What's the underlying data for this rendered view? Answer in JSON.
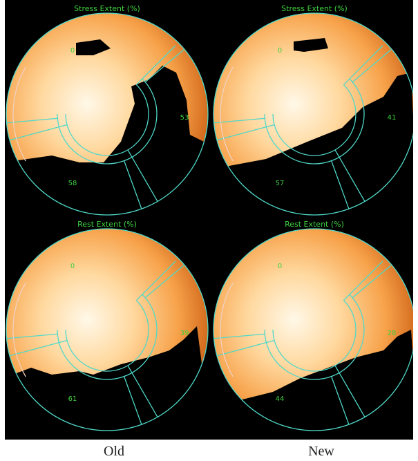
{
  "panels": [
    {
      "title": "Stress Extent (%)",
      "labels": [
        "0",
        "53",
        "58"
      ]
    },
    {
      "title": "Stress Extent (%)",
      "labels": [
        "0",
        "41",
        "57"
      ]
    },
    {
      "title": "Rest Extent (%)",
      "labels": [
        "0",
        "39",
        "61"
      ]
    },
    {
      "title": "Rest Extent (%)",
      "labels": [
        "0",
        "28",
        "44"
      ]
    }
  ],
  "captions": [
    "Old",
    "New"
  ]
}
